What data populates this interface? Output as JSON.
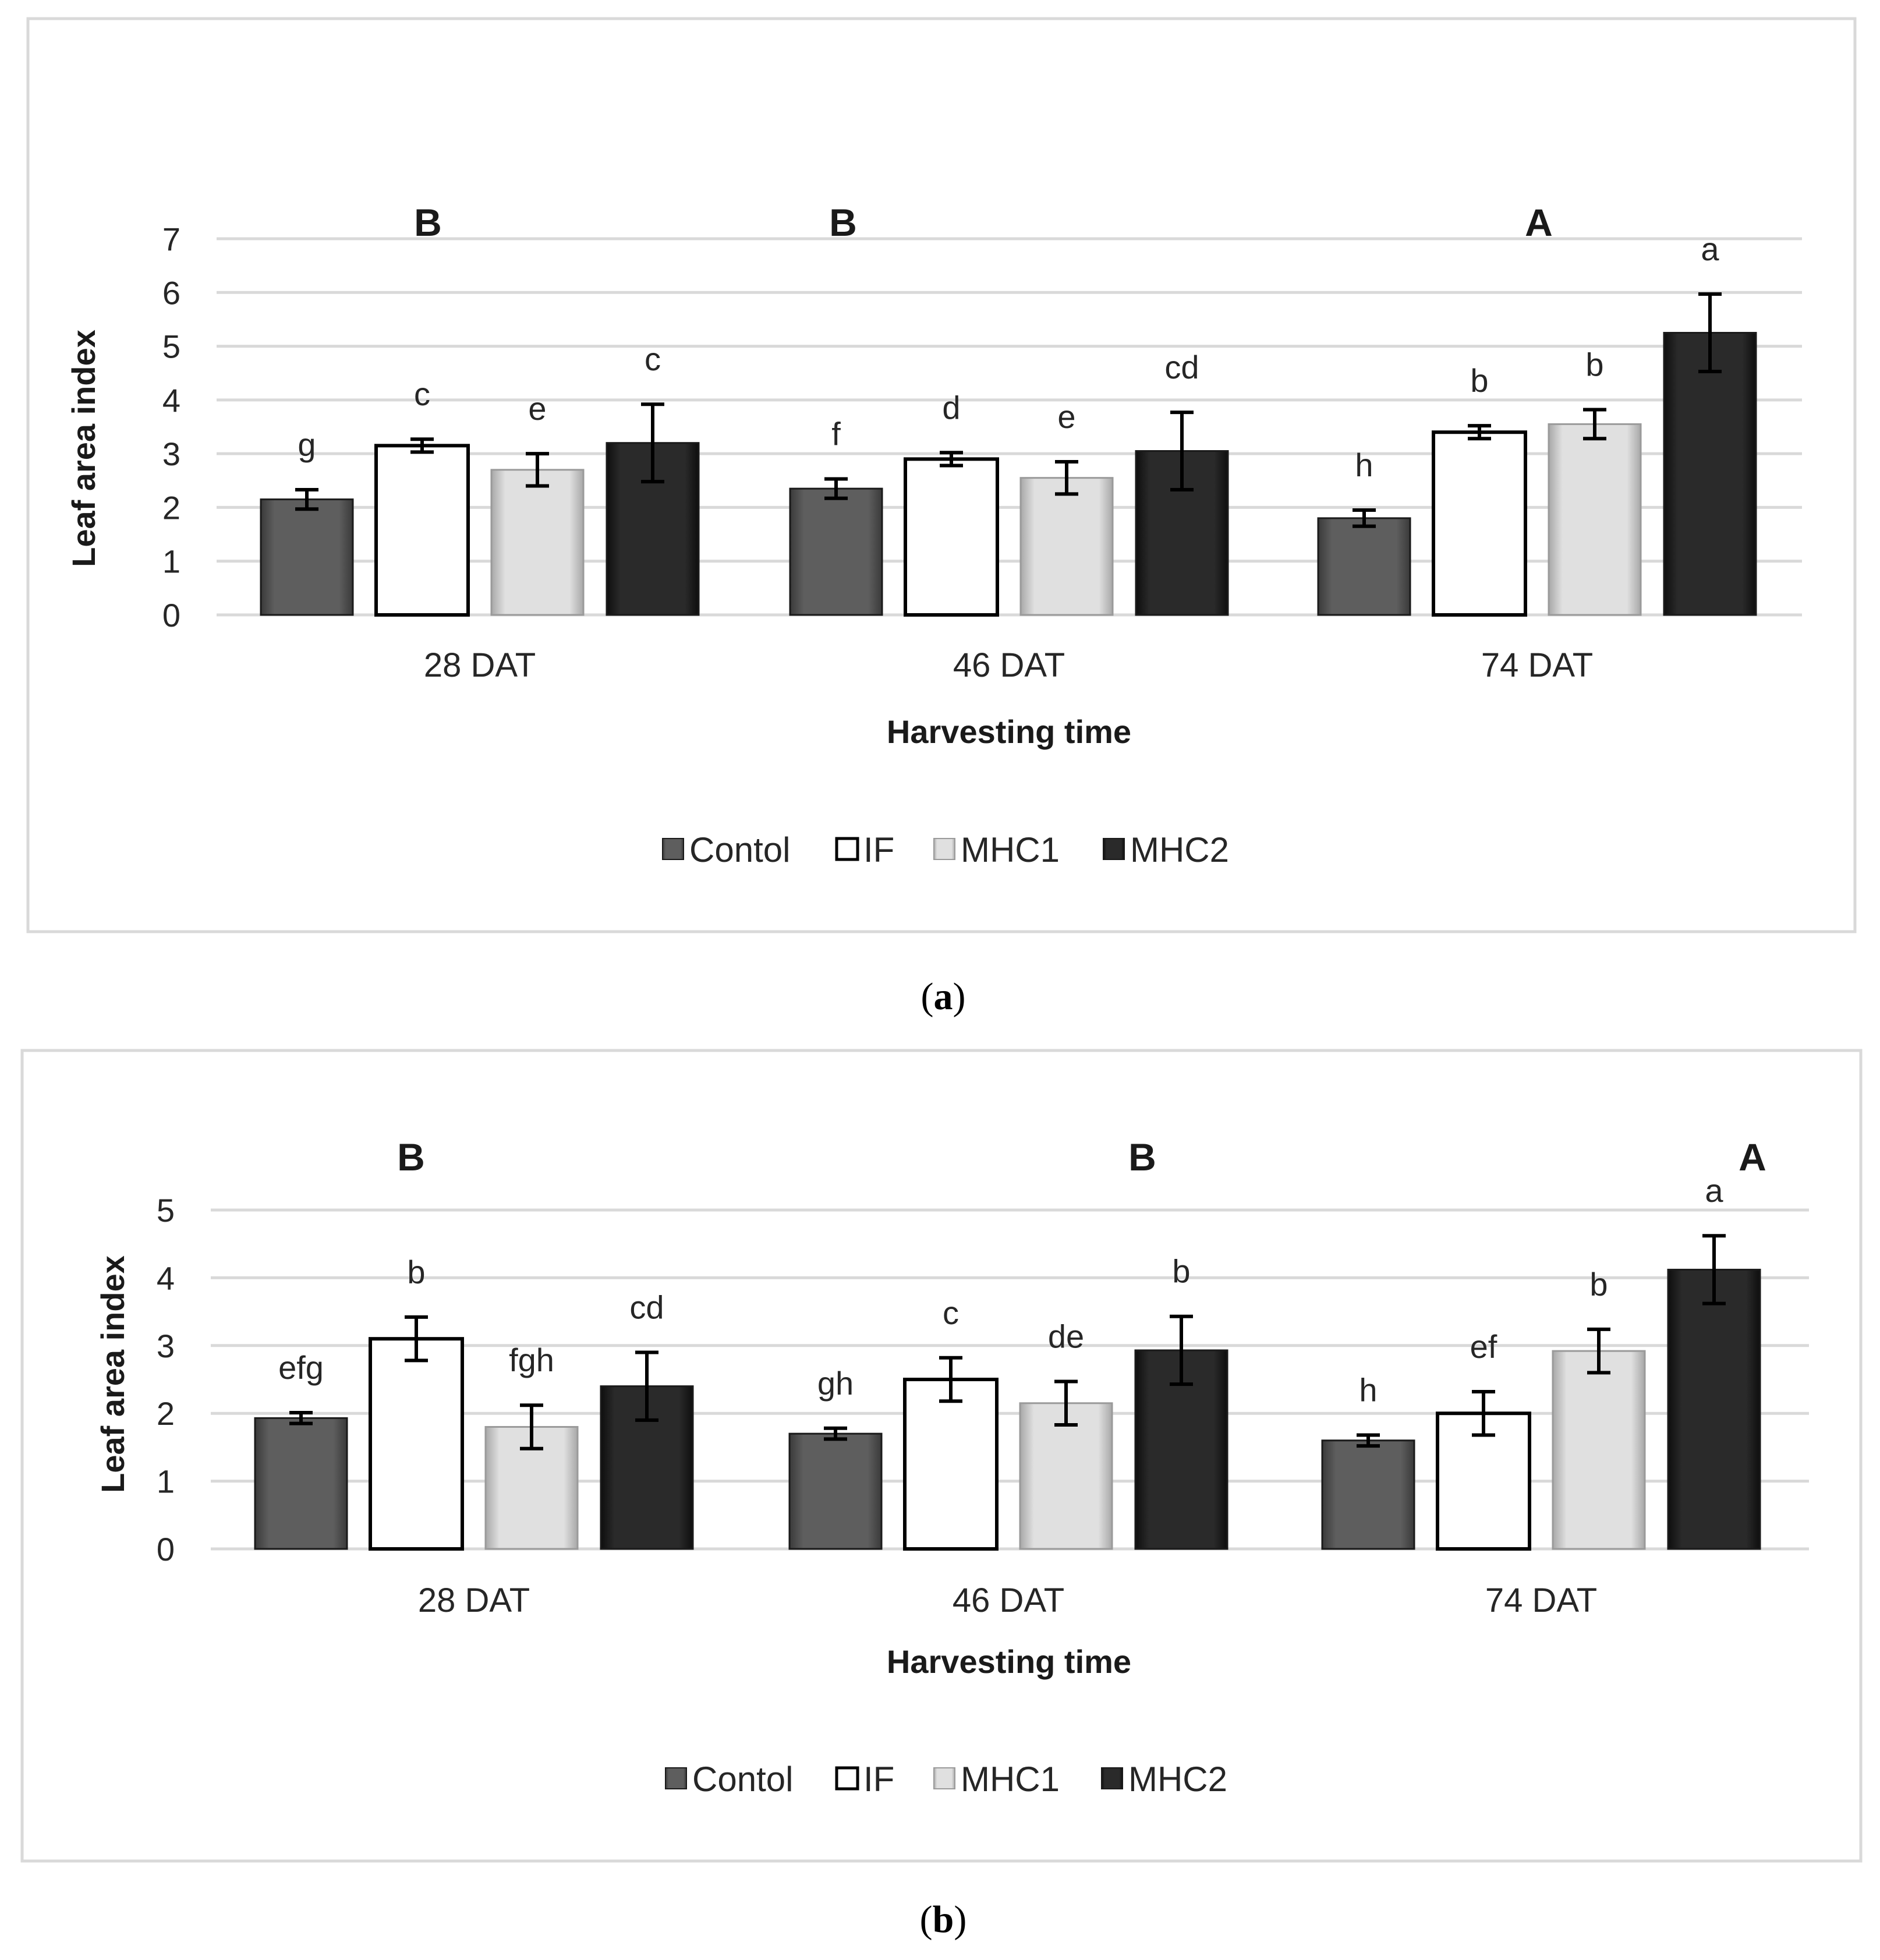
{
  "colors": {
    "Contol": "#5a5a5a",
    "IF": "#ffffff",
    "MHC1": "#dcdcdc",
    "MHC2": "#262626"
  },
  "chart_data": [
    {
      "type": "bar",
      "caption_open": "(",
      "caption_letter": "a",
      "caption_close": ")",
      "xlabel": "Harvesting time",
      "ylabel": "Leaf area index",
      "ylim": [
        0,
        7
      ],
      "yticks": [
        0,
        1,
        2,
        3,
        4,
        5,
        6,
        7
      ],
      "categories": [
        "28 DAT",
        "46 DAT",
        "74 DAT"
      ],
      "group_letters": [
        "B",
        "B",
        "A"
      ],
      "series": [
        {
          "name": "Contol",
          "values": [
            2.15,
            2.35,
            1.8
          ],
          "errors": [
            0.18,
            0.18,
            0.15
          ],
          "letters": [
            "g",
            "f",
            "h"
          ]
        },
        {
          "name": "IF",
          "values": [
            3.15,
            2.9,
            3.4
          ],
          "errors": [
            0.12,
            0.12,
            0.12
          ],
          "letters": [
            "c",
            "d",
            "b"
          ]
        },
        {
          "name": "MHC1",
          "values": [
            2.7,
            2.55,
            3.55
          ],
          "errors": [
            0.3,
            0.3,
            0.27
          ],
          "letters": [
            "e",
            "e",
            "b"
          ]
        },
        {
          "name": "MHC2",
          "values": [
            3.2,
            3.05,
            5.25
          ],
          "errors": [
            0.72,
            0.72,
            0.72
          ],
          "letters": [
            "c",
            "cd",
            "a"
          ]
        }
      ],
      "legend": [
        "Contol",
        "IF",
        "MHC1",
        "MHC2"
      ],
      "legend_position": "bottom"
    },
    {
      "type": "bar",
      "caption_open": "(",
      "caption_letter": "b",
      "caption_close": ")",
      "xlabel": "Harvesting time",
      "ylabel": "Leaf area index",
      "ylim": [
        0,
        5
      ],
      "yticks": [
        0,
        1,
        2,
        3,
        4,
        5
      ],
      "categories": [
        "28 DAT",
        "46 DAT",
        "74 DAT"
      ],
      "group_letters": [
        "B",
        "B",
        "A"
      ],
      "series": [
        {
          "name": "Contol",
          "values": [
            1.93,
            1.7,
            1.6
          ],
          "errors": [
            0.08,
            0.08,
            0.08
          ],
          "letters": [
            "efg",
            "gh",
            "h"
          ]
        },
        {
          "name": "IF",
          "values": [
            3.1,
            2.5,
            2.0
          ],
          "errors": [
            0.32,
            0.32,
            0.32
          ],
          "letters": [
            "b",
            "c",
            "ef"
          ]
        },
        {
          "name": "MHC1",
          "values": [
            1.8,
            2.15,
            2.92
          ],
          "errors": [
            0.32,
            0.32,
            0.32
          ],
          "letters": [
            "fgh",
            "de",
            "b"
          ]
        },
        {
          "name": "MHC2",
          "values": [
            2.4,
            2.93,
            4.12
          ],
          "errors": [
            0.5,
            0.5,
            0.5
          ],
          "letters": [
            "cd",
            "b",
            "a"
          ]
        }
      ],
      "legend": [
        "Contol",
        "IF",
        "MHC1",
        "MHC2"
      ],
      "legend_position": "bottom"
    }
  ]
}
